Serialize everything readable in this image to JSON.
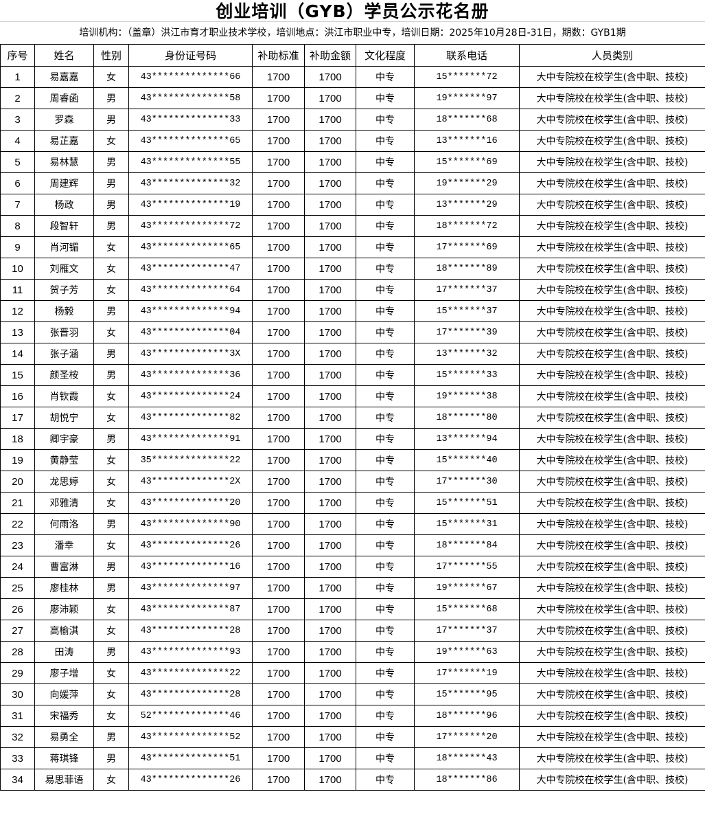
{
  "title": "创业培训（GYB）学员公示花名册",
  "subtitle": "培训机构：（盖章）洪江市育才职业技术学校，培训地点：洪江市职业中专，培训日期：2025年10月28日-31日，期数：GYB1期",
  "headers": [
    "序号",
    "姓名",
    "性别",
    "身份证号码",
    "补助标准",
    "补助金额",
    "文化程度",
    "联系电话",
    "人员类别"
  ],
  "rows": [
    [
      "1",
      "易嘉嘉",
      "女",
      "43**************66",
      "1700",
      "1700",
      "中专",
      "15*******72",
      "大中专院校在校学生(含中职、技校)"
    ],
    [
      "2",
      "周睿函",
      "男",
      "43**************58",
      "1700",
      "1700",
      "中专",
      "19*******97",
      "大中专院校在校学生(含中职、技校)"
    ],
    [
      "3",
      "罗森",
      "男",
      "43**************33",
      "1700",
      "1700",
      "中专",
      "18*******68",
      "大中专院校在校学生(含中职、技校)"
    ],
    [
      "4",
      "易芷嘉",
      "女",
      "43**************65",
      "1700",
      "1700",
      "中专",
      "13*******16",
      "大中专院校在校学生(含中职、技校)"
    ],
    [
      "5",
      "易林慧",
      "男",
      "43**************55",
      "1700",
      "1700",
      "中专",
      "15*******69",
      "大中专院校在校学生(含中职、技校)"
    ],
    [
      "6",
      "周建辉",
      "男",
      "43**************32",
      "1700",
      "1700",
      "中专",
      "19*******29",
      "大中专院校在校学生(含中职、技校)"
    ],
    [
      "7",
      "杨政",
      "男",
      "43**************19",
      "1700",
      "1700",
      "中专",
      "13*******29",
      "大中专院校在校学生(含中职、技校)"
    ],
    [
      "8",
      "段智轩",
      "男",
      "43**************72",
      "1700",
      "1700",
      "中专",
      "18*******72",
      "大中专院校在校学生(含中职、技校)"
    ],
    [
      "9",
      "肖河镅",
      "女",
      "43**************65",
      "1700",
      "1700",
      "中专",
      "17*******69",
      "大中专院校在校学生(含中职、技校)"
    ],
    [
      "10",
      "刘雁文",
      "女",
      "43**************47",
      "1700",
      "1700",
      "中专",
      "18*******89",
      "大中专院校在校学生(含中职、技校)"
    ],
    [
      "11",
      "贺子芳",
      "女",
      "43**************64",
      "1700",
      "1700",
      "中专",
      "17*******37",
      "大中专院校在校学生(含中职、技校)"
    ],
    [
      "12",
      "杨毅",
      "男",
      "43**************94",
      "1700",
      "1700",
      "中专",
      "15*******37",
      "大中专院校在校学生(含中职、技校)"
    ],
    [
      "13",
      "张晋羽",
      "女",
      "43**************04",
      "1700",
      "1700",
      "中专",
      "17*******39",
      "大中专院校在校学生(含中职、技校)"
    ],
    [
      "14",
      "张子涵",
      "男",
      "43**************3X",
      "1700",
      "1700",
      "中专",
      "13*******32",
      "大中专院校在校学生(含中职、技校)"
    ],
    [
      "15",
      "颜圣桉",
      "男",
      "43**************36",
      "1700",
      "1700",
      "中专",
      "15*******33",
      "大中专院校在校学生(含中职、技校)"
    ],
    [
      "16",
      "肖钦霞",
      "女",
      "43**************24",
      "1700",
      "1700",
      "中专",
      "19*******38",
      "大中专院校在校学生(含中职、技校)"
    ],
    [
      "17",
      "胡悦宁",
      "女",
      "43**************82",
      "1700",
      "1700",
      "中专",
      "18*******80",
      "大中专院校在校学生(含中职、技校)"
    ],
    [
      "18",
      "卿宇豪",
      "男",
      "43**************91",
      "1700",
      "1700",
      "中专",
      "13*******94",
      "大中专院校在校学生(含中职、技校)"
    ],
    [
      "19",
      "黄静莹",
      "女",
      "35**************22",
      "1700",
      "1700",
      "中专",
      "15*******40",
      "大中专院校在校学生(含中职、技校)"
    ],
    [
      "20",
      "龙思婷",
      "女",
      "43**************2X",
      "1700",
      "1700",
      "中专",
      "17*******30",
      "大中专院校在校学生(含中职、技校)"
    ],
    [
      "21",
      "邓雅清",
      "女",
      "43**************20",
      "1700",
      "1700",
      "中专",
      "15*******51",
      "大中专院校在校学生(含中职、技校)"
    ],
    [
      "22",
      "何雨洛",
      "男",
      "43**************90",
      "1700",
      "1700",
      "中专",
      "15*******31",
      "大中专院校在校学生(含中职、技校)"
    ],
    [
      "23",
      "潘幸",
      "女",
      "43**************26",
      "1700",
      "1700",
      "中专",
      "18*******84",
      "大中专院校在校学生(含中职、技校)"
    ],
    [
      "24",
      "曹富淋",
      "男",
      "43**************16",
      "1700",
      "1700",
      "中专",
      "17*******55",
      "大中专院校在校学生(含中职、技校)"
    ],
    [
      "25",
      "廖桂林",
      "男",
      "43**************97",
      "1700",
      "1700",
      "中专",
      "19*******67",
      "大中专院校在校学生(含中职、技校)"
    ],
    [
      "26",
      "廖沛颖",
      "女",
      "43**************87",
      "1700",
      "1700",
      "中专",
      "15*******68",
      "大中专院校在校学生(含中职、技校)"
    ],
    [
      "27",
      "高榆淇",
      "女",
      "43**************28",
      "1700",
      "1700",
      "中专",
      "17*******37",
      "大中专院校在校学生(含中职、技校)"
    ],
    [
      "28",
      "田涛",
      "男",
      "43**************93",
      "1700",
      "1700",
      "中专",
      "19*******63",
      "大中专院校在校学生(含中职、技校)"
    ],
    [
      "29",
      "廖子增",
      "女",
      "43**************22",
      "1700",
      "1700",
      "中专",
      "17*******19",
      "大中专院校在校学生(含中职、技校)"
    ],
    [
      "30",
      "向媛萍",
      "女",
      "43**************28",
      "1700",
      "1700",
      "中专",
      "15*******95",
      "大中专院校在校学生(含中职、技校)"
    ],
    [
      "31",
      "宋福秀",
      "女",
      "52**************46",
      "1700",
      "1700",
      "中专",
      "18*******96",
      "大中专院校在校学生(含中职、技校)"
    ],
    [
      "32",
      "易勇全",
      "男",
      "43**************52",
      "1700",
      "1700",
      "中专",
      "17*******20",
      "大中专院校在校学生(含中职、技校)"
    ],
    [
      "33",
      "蒋琪锋",
      "男",
      "43**************51",
      "1700",
      "1700",
      "中专",
      "18*******43",
      "大中专院校在校学生(含中职、技校)"
    ],
    [
      "34",
      "易思菲语",
      "女",
      "43**************26",
      "1700",
      "1700",
      "中专",
      "18*******86",
      "大中专院校在校学生(含中职、技校)"
    ]
  ]
}
